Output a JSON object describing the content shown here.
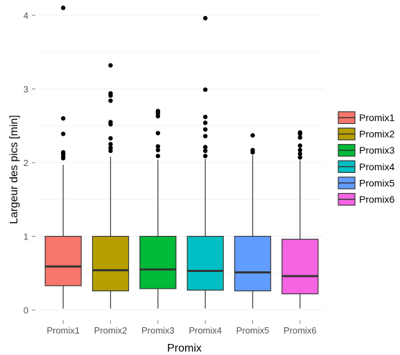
{
  "chart_data": {
    "type": "boxplot",
    "xlabel": "Promix",
    "ylabel": "Largeur des pics [min]",
    "ylim": [
      -0.1,
      4.15
    ],
    "yticks": [
      0,
      1,
      2,
      3,
      4
    ],
    "grid": true,
    "background": "#ffffff",
    "legend_position": "right",
    "categories": [
      "Promix1",
      "Promix2",
      "Promix3",
      "Promix4",
      "Promix5",
      "Promix6"
    ],
    "series": [
      {
        "name": "Promix1",
        "color": "#F8766D",
        "whisker_low": 0.02,
        "q1": 0.33,
        "median": 0.59,
        "q3": 1.0,
        "whisker_high": 1.97,
        "outliers": [
          2.06,
          2.09,
          2.12,
          2.14,
          2.39,
          2.6,
          4.1
        ]
      },
      {
        "name": "Promix2",
        "color": "#B79F00",
        "whisker_low": 0.02,
        "q1": 0.26,
        "median": 0.54,
        "q3": 1.0,
        "whisker_high": 2.08,
        "outliers": [
          2.16,
          2.2,
          2.25,
          2.33,
          2.52,
          2.55,
          2.84,
          2.91,
          2.94,
          3.32
        ]
      },
      {
        "name": "Promix3",
        "color": "#00BA38",
        "whisker_low": 0.02,
        "q1": 0.29,
        "median": 0.55,
        "q3": 1.0,
        "whisker_high": 2.04,
        "outliers": [
          2.09,
          2.17,
          2.22,
          2.4,
          2.63,
          2.67,
          2.7
        ]
      },
      {
        "name": "Promix4",
        "color": "#00BFC4",
        "whisker_low": 0.02,
        "q1": 0.27,
        "median": 0.53,
        "q3": 1.0,
        "whisker_high": 2.05,
        "outliers": [
          2.09,
          2.16,
          2.21,
          2.36,
          2.45,
          2.54,
          2.62,
          2.99,
          3.96
        ]
      },
      {
        "name": "Promix5",
        "color": "#619CFF",
        "whisker_low": 0.02,
        "q1": 0.26,
        "median": 0.51,
        "q3": 1.0,
        "whisker_high": 2.1,
        "outliers": [
          2.14,
          2.17,
          2.37
        ]
      },
      {
        "name": "Promix6",
        "color": "#F564E3",
        "whisker_low": 0.02,
        "q1": 0.22,
        "median": 0.46,
        "q3": 0.96,
        "whisker_high": 2.03,
        "outliers": [
          2.07,
          2.12,
          2.17,
          2.23,
          2.34,
          2.39,
          2.41
        ]
      }
    ]
  }
}
